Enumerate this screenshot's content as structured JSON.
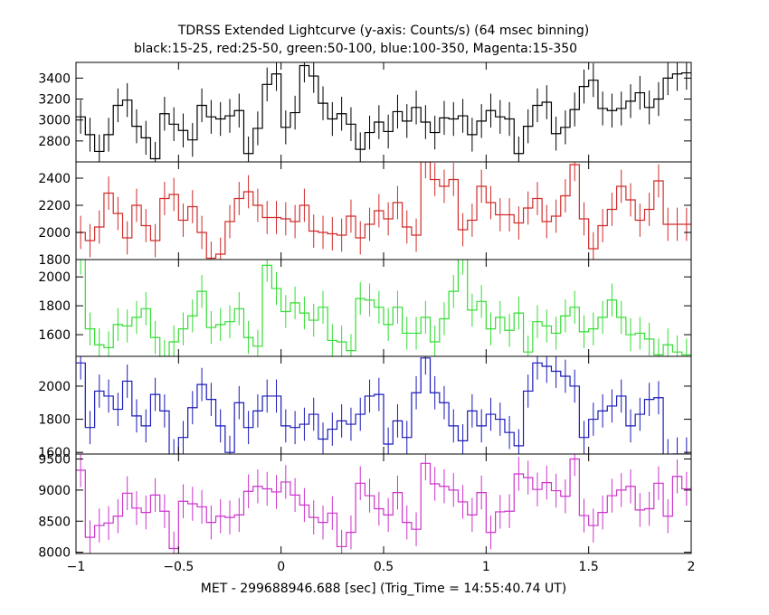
{
  "title": "TDRSS Extended Lightcurve (y-axis: Counts/s) (64 msec binning)",
  "subtitle": "black:15-25, red:25-50, green:50-100, blue:100-350, Magenta:15-350",
  "xlabel": "MET - 299688946.688 [sec] (Trig_Time = 14:55:40.74 UT)",
  "chart_data": {
    "type": "line",
    "x_ticks": [
      -1,
      -0.5,
      0,
      0.5,
      1,
      1.5,
      2
    ],
    "x_tick_labels": [
      "−1",
      "−0.5",
      "0",
      "0.5",
      "1",
      "1.5",
      "2"
    ],
    "xlim": [
      -1,
      2
    ],
    "panels": [
      {
        "band": "15-25",
        "color": "#000000",
        "ylim": [
          2600,
          3550
        ],
        "y_ticks": [
          2800,
          3000,
          3200,
          3400
        ],
        "values": [
          3030,
          2860,
          2700,
          2860,
          3140,
          3190,
          2940,
          2830,
          2630,
          3060,
          2960,
          2900,
          2810,
          3140,
          3030,
          3010,
          3040,
          3090,
          2680,
          2920,
          3340,
          3440,
          2930,
          3070,
          3520,
          3420,
          3160,
          3010,
          3060,
          2960,
          2720,
          2880,
          2980,
          2890,
          3080,
          2990,
          3120,
          2980,
          2880,
          3020,
          3010,
          3040,
          2860,
          2990,
          3090,
          3030,
          3010,
          2680,
          2940,
          3140,
          3170,
          2870,
          2930,
          3100,
          3320,
          3380,
          3110,
          3090,
          3110,
          3180,
          3260,
          3120,
          3200,
          3400,
          3440,
          3450
        ]
      },
      {
        "band": "25-50",
        "color": "#d12a2a",
        "ylim": [
          1800,
          2520
        ],
        "y_ticks": [
          1800,
          2000,
          2200,
          2400
        ],
        "values": [
          2000,
          1940,
          2040,
          2290,
          2140,
          1960,
          2200,
          2050,
          1940,
          2250,
          2280,
          2090,
          2190,
          2000,
          1810,
          1840,
          2080,
          2250,
          2300,
          2200,
          2110,
          2110,
          2100,
          2080,
          2200,
          2010,
          2000,
          1990,
          1980,
          2120,
          1960,
          2060,
          2160,
          2100,
          2220,
          2040,
          1980,
          2520,
          2390,
          2340,
          2390,
          2020,
          2090,
          2340,
          2220,
          2130,
          2130,
          2070,
          2180,
          2250,
          2080,
          2120,
          2270,
          2500,
          2100,
          1880,
          2050,
          2170,
          2340,
          2240,
          2090,
          2170,
          2380,
          2060,
          2060,
          2060
        ]
      },
      {
        "band": "50-100",
        "color": "#33dd33",
        "ylim": [
          1450,
          2120
        ],
        "y_ticks": [
          1600,
          1800,
          2000
        ],
        "values": [
          2130,
          1640,
          1530,
          1510,
          1670,
          1660,
          1720,
          1780,
          1580,
          1450,
          1550,
          1640,
          1730,
          1900,
          1650,
          1670,
          1690,
          1780,
          1580,
          1520,
          2080,
          1920,
          1760,
          1820,
          1750,
          1700,
          1790,
          1560,
          1550,
          1490,
          1850,
          1840,
          1790,
          1670,
          1790,
          1610,
          1610,
          1720,
          1550,
          1710,
          1900,
          2130,
          1770,
          1830,
          1640,
          1720,
          1630,
          1750,
          1480,
          1690,
          1660,
          1610,
          1730,
          1790,
          1620,
          1640,
          1720,
          1840,
          1720,
          1600,
          1610,
          1570,
          1460,
          1530,
          1480,
          1460
        ]
      },
      {
        "band": "100-350",
        "color": "#1a1ab8",
        "ylim": [
          1590,
          2180
        ],
        "y_ticks": [
          1600,
          1800,
          2000
        ],
        "values": [
          2140,
          1750,
          1970,
          1940,
          1860,
          2030,
          1820,
          1760,
          1950,
          1850,
          1580,
          1690,
          1870,
          2010,
          1920,
          1760,
          1600,
          1900,
          1750,
          1850,
          1940,
          1940,
          1760,
          1750,
          1770,
          1830,
          1680,
          1740,
          1790,
          1770,
          1830,
          1940,
          1950,
          1650,
          1790,
          1690,
          1960,
          2170,
          1960,
          1900,
          1760,
          1670,
          1850,
          1760,
          1830,
          1800,
          1720,
          1640,
          1970,
          2140,
          2120,
          2090,
          2060,
          2000,
          1690,
          1800,
          1850,
          1880,
          1940,
          1760,
          1830,
          1920,
          1930,
          1580,
          1590,
          1590
        ]
      },
      {
        "band": "15-350",
        "color": "#cc33cc",
        "ylim": [
          7980,
          9580
        ],
        "y_ticks": [
          8000,
          8500,
          9000,
          9500
        ],
        "values": [
          9320,
          8240,
          8430,
          8470,
          8580,
          8950,
          8710,
          8640,
          8920,
          8660,
          8060,
          8820,
          8780,
          8730,
          8480,
          8580,
          8560,
          8600,
          8980,
          9060,
          9020,
          8970,
          9130,
          8920,
          8760,
          8560,
          8480,
          8630,
          8090,
          8320,
          9110,
          8910,
          8700,
          8600,
          8960,
          8480,
          8370,
          9430,
          9100,
          9060,
          9000,
          8810,
          8600,
          8960,
          8320,
          8650,
          8660,
          9260,
          9200,
          9010,
          9120,
          8990,
          8900,
          9500,
          8590,
          8430,
          8640,
          8910,
          9000,
          9060,
          8680,
          8700,
          9110,
          8580,
          9220,
          9020
        ]
      }
    ]
  }
}
